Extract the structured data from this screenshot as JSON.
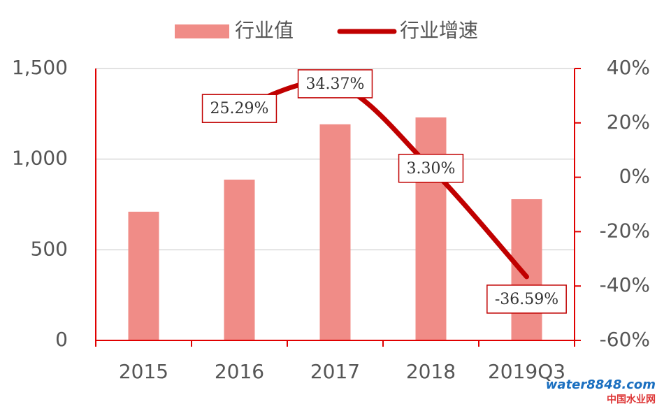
{
  "chart_data": {
    "type": "bar+line",
    "categories": [
      "2015",
      "2016",
      "2017",
      "2018",
      "2019Q3"
    ],
    "series": [
      {
        "name": "行业值",
        "type": "bar",
        "color": "#f08c87",
        "values": [
          710,
          887,
          1192,
          1230,
          779
        ]
      },
      {
        "name": "行业增速",
        "type": "line",
        "axis": "y2",
        "color": "#c00000",
        "values": [
          null,
          25.29,
          34.37,
          3.3,
          -36.59
        ],
        "value_labels": [
          null,
          "25.29%",
          "34.37%",
          "3.30%",
          "-36.59%"
        ]
      }
    ],
    "ylim": [
      0,
      1500
    ],
    "yticks": [
      0,
      500,
      {
        "value": 1000,
        "label": "1,000"
      },
      {
        "value": 1500,
        "label": "1,500"
      }
    ],
    "y2lim": [
      -60,
      40
    ],
    "y2ticks": [
      {
        "value": -60,
        "label": "-60%"
      },
      {
        "value": -40,
        "label": "-40%"
      },
      {
        "value": -20,
        "label": "-20%"
      },
      {
        "value": 0,
        "label": "0%"
      },
      {
        "value": 20,
        "label": "20%"
      },
      {
        "value": 40,
        "label": "40%"
      }
    ],
    "grid": true,
    "legend": "top",
    "watermark": "water8848.com",
    "watermark_sub": "中国水业网"
  }
}
